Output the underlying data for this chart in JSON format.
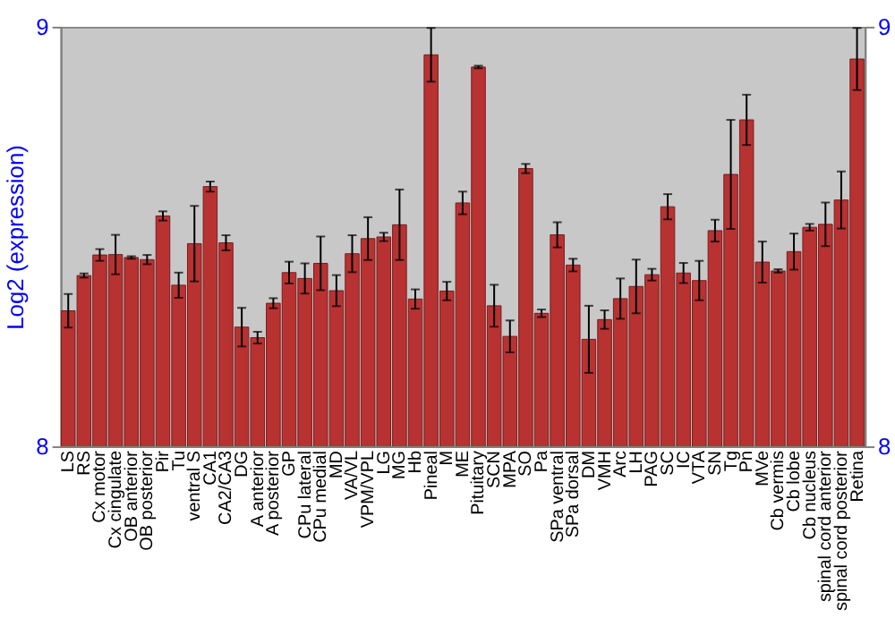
{
  "chart_data": {
    "type": "bar",
    "ylabel": "Log2 (expression)",
    "categories": [
      "LS",
      "RS",
      "Cx motor",
      "Cx cingulate",
      "OB anterior",
      "OB posterior",
      "Pir",
      "Tu",
      "ventral S",
      "CA1",
      "CA2/CA3",
      "DG",
      "A anterior",
      "A posterior",
      "GP",
      "CPu lateral",
      "CPu medial",
      "MD",
      "VA/VL",
      "VPM/VPL",
      "LG",
      "MG",
      "Hb",
      "Pineal",
      "M",
      "ME",
      "Pituitary",
      "SCN",
      "MPA",
      "SO",
      "Pa",
      "SPa ventral",
      "SPa dorsal",
      "DM",
      "VMH",
      "Arc",
      "LH",
      "PAG",
      "SC",
      "IC",
      "VTA",
      "SN",
      "Tg",
      "Pn",
      "MVe",
      "Cb vermis",
      "Cb lobe",
      "Cb nucleus",
      "spinal cord anterior",
      "spinal cord posterior",
      "Retina"
    ],
    "series": [
      {
        "color": "#b83232",
        "values": [
          8.323,
          8.407,
          8.456,
          8.457,
          8.45,
          8.445,
          8.549,
          8.384,
          8.483,
          8.619,
          8.485,
          8.284,
          8.259,
          8.341,
          8.414,
          8.4,
          8.436,
          8.371,
          8.459,
          8.495,
          8.499,
          8.528,
          8.351,
          8.933,
          8.37,
          8.58,
          8.904,
          8.335,
          8.262,
          8.662,
          8.317,
          8.504,
          8.432,
          8.255,
          8.302,
          8.352,
          8.381,
          8.409,
          8.571,
          8.413,
          8.395,
          8.514,
          8.648,
          8.778,
          8.439,
          8.418,
          8.464,
          8.522,
          8.529,
          8.587,
          8.923
        ],
        "errors": [
          0.04,
          0.005,
          0.014,
          0.047,
          0.003,
          0.011,
          0.011,
          0.03,
          0.09,
          0.012,
          0.018,
          0.046,
          0.014,
          0.012,
          0.026,
          0.036,
          0.064,
          0.037,
          0.044,
          0.051,
          0.01,
          0.084,
          0.023,
          0.064,
          0.022,
          0.027,
          0.003,
          0.05,
          0.038,
          0.011,
          0.009,
          0.03,
          0.015,
          0.08,
          0.022,
          0.048,
          0.064,
          0.014,
          0.03,
          0.024,
          0.047,
          0.026,
          0.13,
          0.06,
          0.049,
          0.004,
          0.043,
          0.008,
          0.052,
          0.068,
          0.074
        ]
      }
    ],
    "ylim": [
      8,
      9
    ],
    "yticks": [
      8,
      9
    ],
    "y2lim": [
      8,
      9
    ],
    "y2ticks": [
      8,
      9
    ],
    "grid": false,
    "legend": false
  }
}
